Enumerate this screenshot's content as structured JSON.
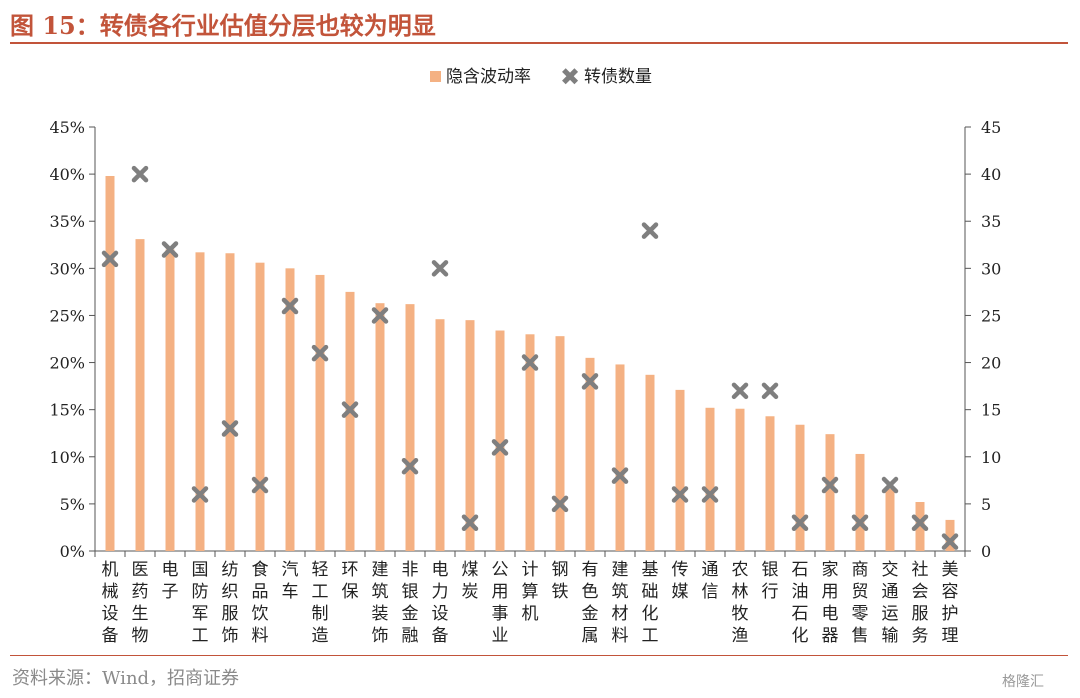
{
  "title": "图 15：转债各行业估值分层也较为明显",
  "source": "资料来源：Wind，招商证券",
  "watermark": "格隆汇",
  "colors": {
    "bar": "#f4b183",
    "marker": "#7f7f7f",
    "accent": "#c2543a"
  },
  "chart_data": {
    "type": "bar",
    "legend_position": "top-center",
    "grid": false,
    "categories": [
      "机械设备",
      "医药生物",
      "电子",
      "国防军工",
      "纺织服饰",
      "食品饮料",
      "汽车",
      "轻工制造",
      "环保",
      "建筑装饰",
      "非银金融",
      "电力设备",
      "煤炭",
      "公用事业",
      "计算机",
      "钢铁",
      "有色金属",
      "建筑材料",
      "基础化工",
      "传媒",
      "通信",
      "农林牧渔",
      "银行",
      "石油石化",
      "家用电器",
      "商贸零售",
      "交通运输",
      "社会服务",
      "美容护理"
    ],
    "series": [
      {
        "name": "隐含波动率",
        "type": "bar",
        "axis": "left",
        "unit": "%",
        "values": [
          39.8,
          33.1,
          32.0,
          31.7,
          31.6,
          30.6,
          30.0,
          29.3,
          27.5,
          26.3,
          26.2,
          24.6,
          24.5,
          23.4,
          23.0,
          22.8,
          20.5,
          19.8,
          18.7,
          17.1,
          15.2,
          15.1,
          14.3,
          13.4,
          12.4,
          10.3,
          6.6,
          5.2,
          3.3
        ]
      },
      {
        "name": "转债数量",
        "type": "scatter",
        "axis": "right",
        "values": [
          31,
          40,
          32,
          6,
          13,
          7,
          26,
          21,
          15,
          25,
          9,
          30,
          3,
          11,
          20,
          5,
          18,
          8,
          34,
          6,
          6,
          17,
          17,
          3,
          7,
          3,
          7,
          3,
          1
        ]
      }
    ],
    "y_left": {
      "min": 0,
      "max": 45,
      "step": 5,
      "tick_labels": [
        "0%",
        "5%",
        "10%",
        "15%",
        "20%",
        "25%",
        "30%",
        "35%",
        "40%",
        "45%"
      ]
    },
    "y_right": {
      "min": 0,
      "max": 45,
      "step": 5,
      "tick_labels": [
        "0",
        "5",
        "10",
        "15",
        "20",
        "25",
        "30",
        "35",
        "40",
        "45"
      ]
    }
  }
}
